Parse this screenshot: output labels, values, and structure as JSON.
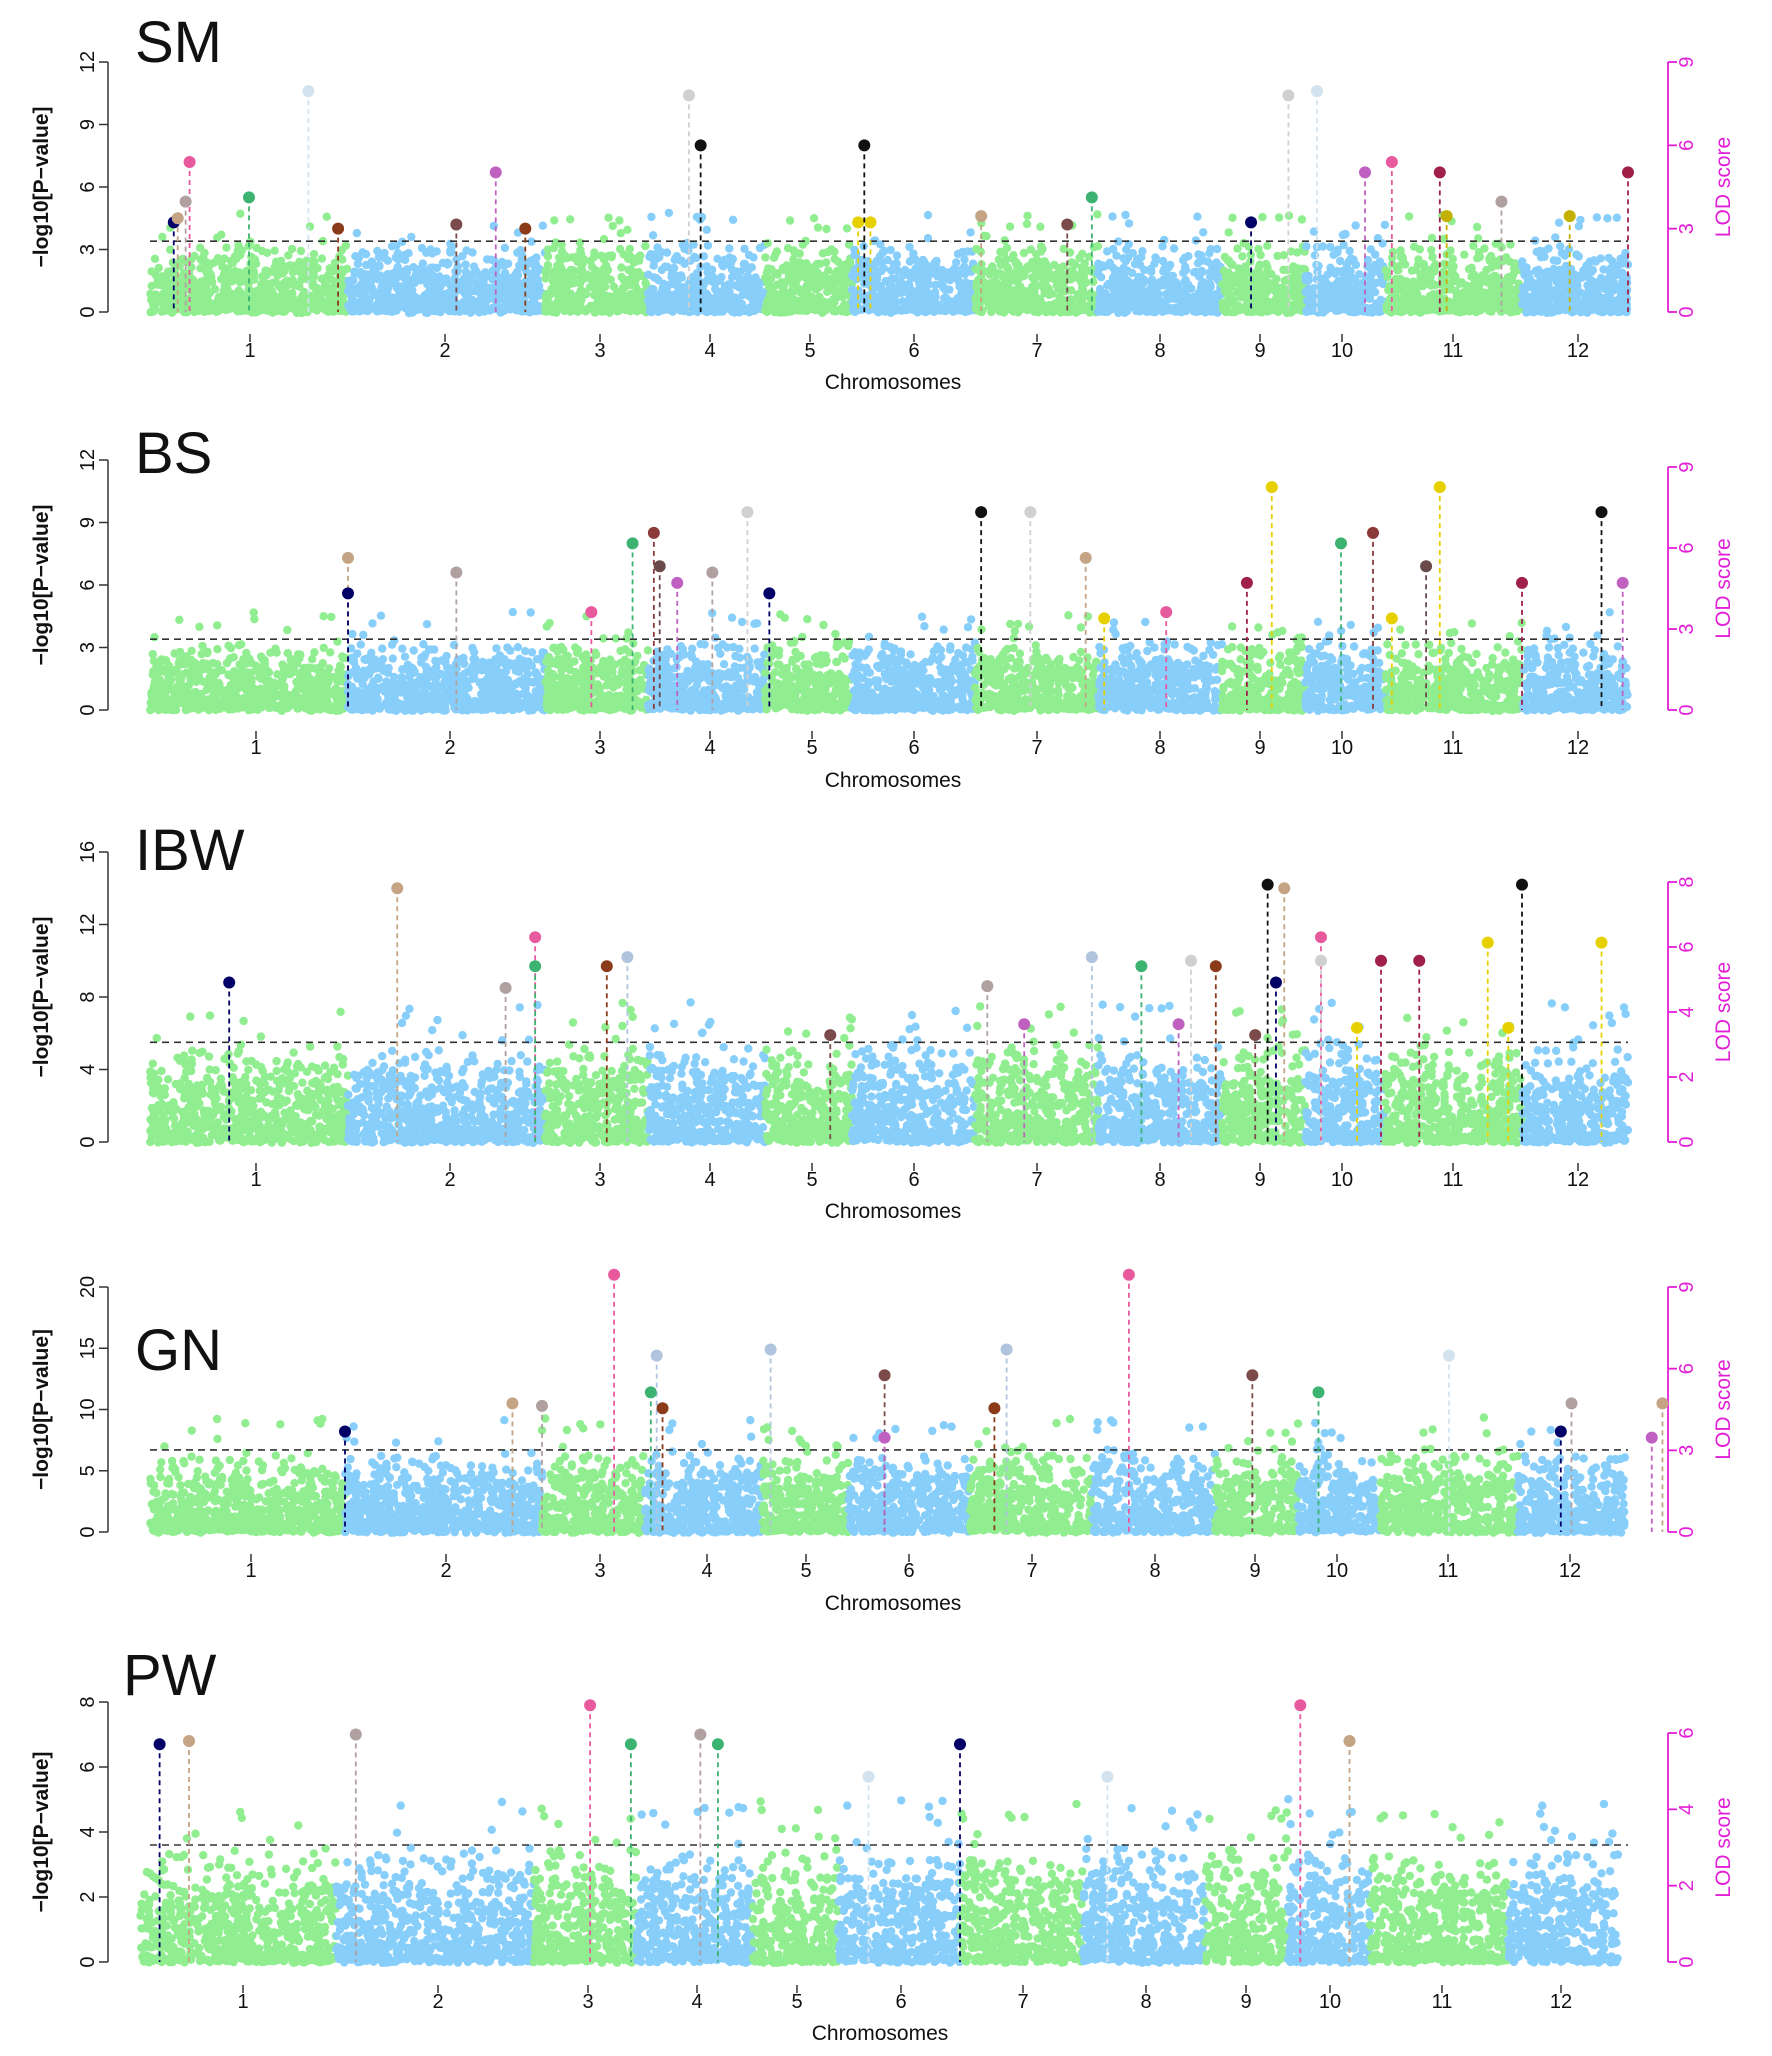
{
  "colors": {
    "green": "#90ee90",
    "blue": "#87cefa",
    "lod_axis": "#e21fd7",
    "threshold": "#333333",
    "text": "#111111"
  },
  "chart_data": [
    {
      "type": "scatter",
      "panel_label": "SM",
      "xlabel": "Chromosomes",
      "ylabel": "−log10[P−value]",
      "y2label": "LOD score",
      "ylim": [
        0,
        12
      ],
      "yticks": [
        0,
        3,
        6,
        9,
        12
      ],
      "y2lim": [
        0,
        9
      ],
      "y2ticks": [
        0,
        3,
        6,
        9
      ],
      "threshold": 3.4,
      "chromosomes": [
        "1",
        "2",
        "3",
        "4",
        "5",
        "6",
        "7",
        "8",
        "9",
        "10",
        "11",
        "12"
      ],
      "peaks": [
        {
          "chr": 0.12,
          "y": 4.3,
          "color": "#000066"
        },
        {
          "chr": 0.14,
          "y": 4.5,
          "color": "#c4a484"
        },
        {
          "chr": 0.2,
          "y": 7.2,
          "color": "#e85a9e"
        },
        {
          "chr": 0.18,
          "y": 5.3,
          "color": "#b0a0a0"
        },
        {
          "chr": 0.5,
          "y": 5.5,
          "color": "#3cb371"
        },
        {
          "chr": 0.8,
          "y": 10.6,
          "color": "#d3e3ee"
        },
        {
          "chr": 0.95,
          "y": 4.0,
          "color": "#8b3a1a"
        },
        {
          "chr": 1.55,
          "y": 4.2,
          "color": "#7b4a4a"
        },
        {
          "chr": 1.75,
          "y": 6.7,
          "color": "#c060c0"
        },
        {
          "chr": 1.9,
          "y": 4.0,
          "color": "#8b3a1a"
        },
        {
          "chr": 3.35,
          "y": 10.4,
          "color": "#d0d0d0"
        },
        {
          "chr": 3.45,
          "y": 8.0,
          "color": "#111111"
        },
        {
          "chr": 5.05,
          "y": 4.3,
          "color": "#e6d000"
        },
        {
          "chr": 5.15,
          "y": 4.3,
          "color": "#e6d000"
        },
        {
          "chr": 5.1,
          "y": 8.0,
          "color": "#111111"
        },
        {
          "chr": 6.05,
          "y": 4.6,
          "color": "#c4a484"
        },
        {
          "chr": 6.75,
          "y": 4.2,
          "color": "#7b4a4a"
        },
        {
          "chr": 6.95,
          "y": 5.5,
          "color": "#3cb371"
        },
        {
          "chr": 8.35,
          "y": 4.3,
          "color": "#000066"
        },
        {
          "chr": 8.8,
          "y": 10.4,
          "color": "#d0d0d0"
        },
        {
          "chr": 9.15,
          "y": 10.6,
          "color": "#d3e3ee"
        },
        {
          "chr": 9.75,
          "y": 6.7,
          "color": "#c060c0"
        },
        {
          "chr": 10.05,
          "y": 7.2,
          "color": "#e85a9e"
        },
        {
          "chr": 10.4,
          "y": 6.7,
          "color": "#a0204a"
        },
        {
          "chr": 10.45,
          "y": 4.6,
          "color": "#c4b000"
        },
        {
          "chr": 10.85,
          "y": 5.3,
          "color": "#b0a0a0"
        },
        {
          "chr": 11.45,
          "y": 4.6,
          "color": "#c4b000"
        },
        {
          "chr": 12.0,
          "y": 6.7,
          "color": "#a0204a"
        }
      ]
    },
    {
      "type": "scatter",
      "panel_label": "BS",
      "xlabel": "Chromosomes",
      "ylabel": "−log10[P−value]",
      "y2label": "LOD score",
      "ylim": [
        0,
        12
      ],
      "yticks": [
        0,
        3,
        6,
        9
      ],
      "ytick_top_label": "12",
      "y2lim": [
        0,
        9
      ],
      "y2ticks": [
        0,
        3,
        6,
        9
      ],
      "threshold": 3.4,
      "chromosomes": [
        "1",
        "2",
        "3",
        "4",
        "5",
        "6",
        "7",
        "8",
        "9",
        "10",
        "11",
        "12"
      ],
      "peaks": [
        {
          "chr": 1.0,
          "y": 7.3,
          "color": "#c4a484"
        },
        {
          "chr": 1.0,
          "y": 5.6,
          "color": "#000066"
        },
        {
          "chr": 1.55,
          "y": 6.6,
          "color": "#b0a0a0"
        },
        {
          "chr": 2.45,
          "y": 4.7,
          "color": "#e85a9e"
        },
        {
          "chr": 2.85,
          "y": 8.0,
          "color": "#3cb371"
        },
        {
          "chr": 3.05,
          "y": 8.5,
          "color": "#8b3a3a"
        },
        {
          "chr": 3.1,
          "y": 6.9,
          "color": "#6b4a4a"
        },
        {
          "chr": 3.25,
          "y": 6.1,
          "color": "#c060c0"
        },
        {
          "chr": 3.55,
          "y": 6.6,
          "color": "#b0a0a0"
        },
        {
          "chr": 3.85,
          "y": 9.5,
          "color": "#d0d0d0"
        },
        {
          "chr": 4.05,
          "y": 5.6,
          "color": "#000066"
        },
        {
          "chr": 6.05,
          "y": 9.5,
          "color": "#111111"
        },
        {
          "chr": 6.45,
          "y": 9.5,
          "color": "#d0d0d0"
        },
        {
          "chr": 6.9,
          "y": 7.3,
          "color": "#c4a484"
        },
        {
          "chr": 7.05,
          "y": 4.4,
          "color": "#e6d000"
        },
        {
          "chr": 7.55,
          "y": 4.7,
          "color": "#e85a9e"
        },
        {
          "chr": 8.3,
          "y": 6.1,
          "color": "#a0204a"
        },
        {
          "chr": 8.6,
          "y": 10.7,
          "color": "#e6d000"
        },
        {
          "chr": 9.45,
          "y": 8.0,
          "color": "#3cb371"
        },
        {
          "chr": 9.85,
          "y": 8.5,
          "color": "#8b3a3a"
        },
        {
          "chr": 10.05,
          "y": 4.4,
          "color": "#e6d000"
        },
        {
          "chr": 10.3,
          "y": 6.9,
          "color": "#6b4a4a"
        },
        {
          "chr": 10.4,
          "y": 10.7,
          "color": "#e6d000"
        },
        {
          "chr": 11.0,
          "y": 6.1,
          "color": "#a0204a"
        },
        {
          "chr": 11.75,
          "y": 9.5,
          "color": "#111111"
        },
        {
          "chr": 11.95,
          "y": 6.1,
          "color": "#c060c0"
        }
      ]
    },
    {
      "type": "scatter",
      "panel_label": "IBW",
      "xlabel": "Chromosomes",
      "ylabel": "−log10[P−value]",
      "y2label": "LOD score",
      "ylim": [
        0,
        16
      ],
      "yticks": [
        0,
        4,
        8,
        12,
        16
      ],
      "y2lim": [
        0,
        8
      ],
      "y2ticks": [
        0,
        2,
        4,
        6,
        8
      ],
      "threshold": 5.5,
      "chromosomes": [
        "1",
        "2",
        "3",
        "4",
        "5",
        "6",
        "7",
        "8",
        "9",
        "10",
        "11",
        "12"
      ],
      "peaks": [
        {
          "chr": 0.4,
          "y": 8.8,
          "color": "#000066"
        },
        {
          "chr": 1.25,
          "y": 14.0,
          "color": "#c4a484"
        },
        {
          "chr": 1.8,
          "y": 8.5,
          "color": "#b0a0a0"
        },
        {
          "chr": 1.95,
          "y": 11.3,
          "color": "#e85a9e"
        },
        {
          "chr": 1.95,
          "y": 9.7,
          "color": "#3cb371"
        },
        {
          "chr": 2.6,
          "y": 9.7,
          "color": "#8b3a1a"
        },
        {
          "chr": 2.8,
          "y": 10.2,
          "color": "#b0c4de"
        },
        {
          "chr": 4.75,
          "y": 5.9,
          "color": "#7b4a4a"
        },
        {
          "chr": 6.1,
          "y": 8.6,
          "color": "#b0a0a0"
        },
        {
          "chr": 6.4,
          "y": 6.5,
          "color": "#c060c0"
        },
        {
          "chr": 6.95,
          "y": 10.2,
          "color": "#b0c4de"
        },
        {
          "chr": 7.35,
          "y": 9.7,
          "color": "#3cb371"
        },
        {
          "chr": 7.65,
          "y": 6.5,
          "color": "#c060c0"
        },
        {
          "chr": 7.75,
          "y": 10.0,
          "color": "#d0d0d0"
        },
        {
          "chr": 7.95,
          "y": 9.7,
          "color": "#8b3a1a"
        },
        {
          "chr": 8.4,
          "y": 5.9,
          "color": "#7b4a4a"
        },
        {
          "chr": 8.55,
          "y": 14.2,
          "color": "#111111"
        },
        {
          "chr": 8.65,
          "y": 8.8,
          "color": "#000066"
        },
        {
          "chr": 8.75,
          "y": 14.0,
          "color": "#c4a484"
        },
        {
          "chr": 9.2,
          "y": 11.3,
          "color": "#e85a9e"
        },
        {
          "chr": 9.2,
          "y": 10.0,
          "color": "#d0d0d0"
        },
        {
          "chr": 9.65,
          "y": 6.3,
          "color": "#e6d000"
        },
        {
          "chr": 9.95,
          "y": 10.0,
          "color": "#a0204a"
        },
        {
          "chr": 10.25,
          "y": 10.0,
          "color": "#a0204a"
        },
        {
          "chr": 10.75,
          "y": 11.0,
          "color": "#e6d000"
        },
        {
          "chr": 10.9,
          "y": 6.3,
          "color": "#e6d000"
        },
        {
          "chr": 11.0,
          "y": 14.2,
          "color": "#111111"
        },
        {
          "chr": 11.75,
          "y": 11.0,
          "color": "#e6d000"
        }
      ]
    },
    {
      "type": "scatter",
      "panel_label": "GN",
      "xlabel": "Chromosomes",
      "ylabel": "−log10[P−value]",
      "y2label": "LOD score",
      "ylim": [
        0,
        20
      ],
      "yticks": [
        0,
        5,
        10,
        15,
        20
      ],
      "y2lim": [
        0,
        9
      ],
      "y2ticks": [
        0,
        3,
        6,
        9
      ],
      "threshold": 6.7,
      "chromosomes": [
        "1",
        "2",
        "3",
        "4",
        "5",
        "6",
        "7",
        "8",
        "9",
        "10",
        "11",
        "12"
      ],
      "peaks": [
        {
          "chr": 1.0,
          "y": 8.2,
          "color": "#000066"
        },
        {
          "chr": 1.85,
          "y": 10.5,
          "color": "#c4a484"
        },
        {
          "chr": 2.0,
          "y": 10.3,
          "color": "#b0a0a0"
        },
        {
          "chr": 2.7,
          "y": 21.0,
          "color": "#e85a9e"
        },
        {
          "chr": 3.1,
          "y": 14.4,
          "color": "#b0c4de"
        },
        {
          "chr": 3.05,
          "y": 11.4,
          "color": "#3cb371"
        },
        {
          "chr": 3.15,
          "y": 10.1,
          "color": "#8b3a1a"
        },
        {
          "chr": 4.1,
          "y": 14.9,
          "color": "#b0c4de"
        },
        {
          "chr": 5.3,
          "y": 12.8,
          "color": "#7b4a4a"
        },
        {
          "chr": 5.3,
          "y": 7.7,
          "color": "#c060c0"
        },
        {
          "chr": 6.2,
          "y": 10.1,
          "color": "#8b3a1a"
        },
        {
          "chr": 6.3,
          "y": 14.9,
          "color": "#b0c4de"
        },
        {
          "chr": 7.3,
          "y": 21.0,
          "color": "#e85a9e"
        },
        {
          "chr": 8.45,
          "y": 12.8,
          "color": "#7b4a4a"
        },
        {
          "chr": 9.25,
          "y": 11.4,
          "color": "#3cb371"
        },
        {
          "chr": 10.5,
          "y": 14.4,
          "color": "#d3e3ee"
        },
        {
          "chr": 11.4,
          "y": 8.2,
          "color": "#000066"
        },
        {
          "chr": 11.5,
          "y": 10.5,
          "color": "#b0a0a0"
        },
        {
          "chr": 12.25,
          "y": 7.7,
          "color": "#c060c0"
        },
        {
          "chr": 12.35,
          "y": 10.5,
          "color": "#c4a484"
        }
      ]
    },
    {
      "type": "scatter",
      "panel_label": "PW",
      "xlabel": "Chromosomes",
      "ylabel": "−log10[P−value]",
      "y2label": "LOD score",
      "ylim": [
        0,
        8
      ],
      "yticks": [
        0,
        2,
        4,
        6,
        8
      ],
      "y2lim": [
        0,
        6
      ],
      "y2ticks": [
        0,
        2,
        4,
        6
      ],
      "threshold": 3.6,
      "chromosomes": [
        "1",
        "2",
        "3",
        "4",
        "5",
        "6",
        "7",
        "8",
        "9",
        "10",
        "11",
        "12"
      ],
      "peaks": [
        {
          "chr": 0.1,
          "y": 6.7,
          "color": "#000066"
        },
        {
          "chr": 0.25,
          "y": 6.8,
          "color": "#c4a484"
        },
        {
          "chr": 1.1,
          "y": 7.0,
          "color": "#b0a0a0"
        },
        {
          "chr": 2.55,
          "y": 7.9,
          "color": "#e85a9e"
        },
        {
          "chr": 2.95,
          "y": 6.7,
          "color": "#3cb371"
        },
        {
          "chr": 3.55,
          "y": 7.0,
          "color": "#b0a0a0"
        },
        {
          "chr": 3.7,
          "y": 6.7,
          "color": "#3cb371"
        },
        {
          "chr": 5.25,
          "y": 5.7,
          "color": "#d3e3ee"
        },
        {
          "chr": 6.0,
          "y": 6.7,
          "color": "#000066"
        },
        {
          "chr": 7.2,
          "y": 5.7,
          "color": "#d3e3ee"
        },
        {
          "chr": 9.15,
          "y": 7.9,
          "color": "#e85a9e"
        },
        {
          "chr": 9.75,
          "y": 6.8,
          "color": "#c4a484"
        }
      ]
    }
  ]
}
